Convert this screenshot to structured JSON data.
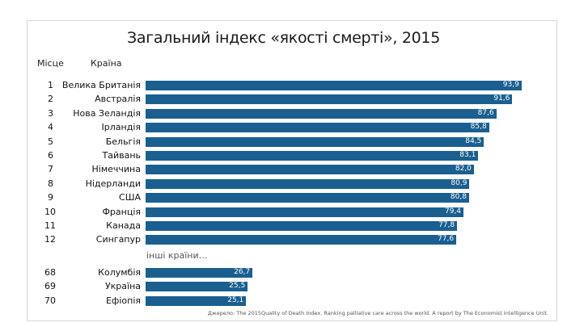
{
  "chart_data": {
    "type": "bar",
    "title": "Загальний індекс «якості смерті», 2015",
    "column_headers": {
      "rank": "Місце",
      "country": "Країна"
    },
    "rows": [
      {
        "rank": "1",
        "country": "Велика Британія",
        "value": 93.9,
        "label": "93,9"
      },
      {
        "rank": "2",
        "country": "Австралія",
        "value": 91.6,
        "label": "91,6"
      },
      {
        "rank": "3",
        "country": "Нова Зеландія",
        "value": 87.6,
        "label": "87,6"
      },
      {
        "rank": "4",
        "country": "Ірландія",
        "value": 85.8,
        "label": "85,8"
      },
      {
        "rank": "5",
        "country": "Бельгія",
        "value": 84.5,
        "label": "84,5"
      },
      {
        "rank": "6",
        "country": "Тайвань",
        "value": 83.1,
        "label": "83,1"
      },
      {
        "rank": "7",
        "country": "Німеччина",
        "value": 82.0,
        "label": "82,0"
      },
      {
        "rank": "8",
        "country": "Нідерланди",
        "value": 80.9,
        "label": "80,9"
      },
      {
        "rank": "9",
        "country": "США",
        "value": 80.8,
        "label": "80,8"
      },
      {
        "rank": "10",
        "country": "Франція",
        "value": 79.4,
        "label": "79,4"
      },
      {
        "rank": "11",
        "country": "Канада",
        "value": 77.8,
        "label": "77,8"
      },
      {
        "rank": "12",
        "country": "Сингапур",
        "value": 77.6,
        "label": "77,6"
      },
      {
        "rank": "68",
        "country": "Колумбія",
        "value": 26.7,
        "label": "26,7"
      },
      {
        "rank": "69",
        "country": "Україна",
        "value": 25.5,
        "label": "25,5"
      },
      {
        "rank": "70",
        "country": "Ефіопія",
        "value": 25.1,
        "label": "25,1"
      }
    ],
    "separator_label": "інші країни…",
    "source": "Джерело: The 2015Quality of Death Index. Ranking palliative care across the world. A report by The Economist Intelligence Unit.",
    "bar_color": "#1a5f8f",
    "grid": false
  }
}
